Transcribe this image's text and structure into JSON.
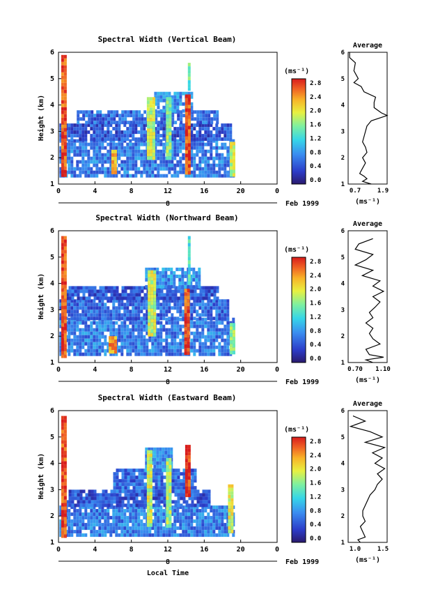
{
  "figure": {
    "date_label": "Feb 1999",
    "day_label": "8",
    "time_axis_label": "Local Time",
    "colorbar_unit": "(ms⁻¹)",
    "average_title": "Average",
    "average_unit": "(ms⁻¹)",
    "height_label": "Height (km)"
  },
  "chart_data": [
    {
      "type": "heatmap",
      "title": "Spectral Width (Vertical Beam)",
      "xlabel": "Local Time",
      "ylabel": "Height (km)",
      "xlim": [
        0,
        24
      ],
      "ylim": [
        1,
        6
      ],
      "x_ticks": [
        "0",
        "4",
        "8",
        "12",
        "16",
        "20",
        "0"
      ],
      "y_ticks": [
        "1",
        "2",
        "3",
        "4",
        "5",
        "6"
      ],
      "colorbar": {
        "unit": "(ms⁻¹)",
        "range": [
          0.0,
          2.8
        ],
        "ticks": [
          "0.0",
          "0.4",
          "0.8",
          "1.2",
          "1.6",
          "2.0",
          "2.4",
          "2.8"
        ]
      },
      "data_extent_hours": [
        0.0,
        19.3
      ],
      "cells": [
        {
          "t0": 0.1,
          "t1": 19.3,
          "h0": 1.35,
          "h1": 2.7,
          "v": 0.7
        },
        {
          "t0": 0.1,
          "t1": 19.0,
          "h0": 2.7,
          "h1": 3.3,
          "v": 0.5
        },
        {
          "t0": 2.0,
          "t1": 17.5,
          "h0": 3.3,
          "h1": 3.8,
          "v": 0.6
        },
        {
          "t0": 10.5,
          "t1": 14.5,
          "h0": 3.8,
          "h1": 4.5,
          "v": 0.8
        },
        {
          "t0": 0.3,
          "t1": 0.9,
          "h0": 1.3,
          "h1": 5.9,
          "v": 2.6
        },
        {
          "t0": 5.8,
          "t1": 6.3,
          "h0": 1.4,
          "h1": 2.3,
          "v": 2.2
        },
        {
          "t0": 9.7,
          "t1": 10.4,
          "h0": 2.0,
          "h1": 4.3,
          "v": 1.8
        },
        {
          "t0": 11.8,
          "t1": 12.4,
          "h0": 2.0,
          "h1": 4.3,
          "v": 1.6
        },
        {
          "t0": 13.9,
          "t1": 14.4,
          "h0": 1.4,
          "h1": 4.4,
          "v": 2.6
        },
        {
          "t0": 14.2,
          "t1": 14.5,
          "h0": 4.6,
          "h1": 5.6,
          "v": 1.4
        },
        {
          "t0": 18.8,
          "t1": 19.3,
          "h0": 1.4,
          "h1": 2.6,
          "v": 1.8
        }
      ],
      "average": {
        "xlim": [
          0.55,
          1.9
        ],
        "x_ticks": [
          "0.7",
          "1.9"
        ],
        "profile": [
          [
            1.0,
            1.35
          ],
          [
            1.1,
            1.05
          ],
          [
            1.2,
            1.2
          ],
          [
            1.3,
            1.1
          ],
          [
            1.4,
            0.95
          ],
          [
            1.6,
            1.05
          ],
          [
            1.8,
            1.15
          ],
          [
            2.0,
            1.05
          ],
          [
            2.2,
            1.2
          ],
          [
            2.4,
            1.15
          ],
          [
            2.6,
            1.05
          ],
          [
            2.8,
            1.1
          ],
          [
            3.0,
            1.15
          ],
          [
            3.2,
            1.2
          ],
          [
            3.4,
            1.35
          ],
          [
            3.6,
            1.9
          ],
          [
            3.7,
            1.7
          ],
          [
            3.9,
            1.45
          ],
          [
            4.1,
            1.45
          ],
          [
            4.3,
            1.5
          ],
          [
            4.5,
            1.1
          ],
          [
            4.7,
            1.0
          ],
          [
            4.85,
            0.75
          ],
          [
            5.0,
            0.9
          ],
          [
            5.3,
            0.75
          ],
          [
            5.6,
            0.8
          ],
          [
            5.8,
            0.6
          ],
          [
            6.0,
            0.6
          ]
        ]
      }
    },
    {
      "type": "heatmap",
      "title": "Spectral Width (Northward Beam)",
      "xlabel": "Local Time",
      "ylabel": "Height (km)",
      "xlim": [
        0,
        24
      ],
      "ylim": [
        1,
        6
      ],
      "x_ticks": [
        "0",
        "4",
        "8",
        "12",
        "16",
        "20",
        "0"
      ],
      "y_ticks": [
        "1",
        "2",
        "3",
        "4",
        "5",
        "6"
      ],
      "colorbar": {
        "unit": "(ms⁻¹)",
        "range": [
          0.0,
          2.8
        ],
        "ticks": [
          "0.0",
          "0.4",
          "0.8",
          "1.2",
          "1.6",
          "2.0",
          "2.4",
          "2.8"
        ]
      },
      "data_extent_hours": [
        0.0,
        19.3
      ],
      "cells": [
        {
          "t0": 0.1,
          "t1": 19.3,
          "h0": 1.3,
          "h1": 2.7,
          "v": 0.7
        },
        {
          "t0": 0.1,
          "t1": 18.5,
          "h0": 2.7,
          "h1": 3.4,
          "v": 0.6
        },
        {
          "t0": 0.5,
          "t1": 17.5,
          "h0": 3.4,
          "h1": 3.9,
          "v": 0.5
        },
        {
          "t0": 9.5,
          "t1": 15.5,
          "h0": 3.9,
          "h1": 4.6,
          "v": 0.8
        },
        {
          "t0": 0.3,
          "t1": 0.9,
          "h0": 1.3,
          "h1": 5.8,
          "v": 2.6
        },
        {
          "t0": 5.5,
          "t1": 6.2,
          "h0": 1.4,
          "h1": 2.0,
          "v": 2.3
        },
        {
          "t0": 9.8,
          "t1": 10.5,
          "h0": 2.0,
          "h1": 4.5,
          "v": 1.8
        },
        {
          "t0": 13.8,
          "t1": 14.3,
          "h0": 1.4,
          "h1": 3.8,
          "v": 2.6
        },
        {
          "t0": 14.2,
          "t1": 14.5,
          "h0": 4.0,
          "h1": 5.8,
          "v": 1.3
        },
        {
          "t0": 18.8,
          "t1": 19.3,
          "h0": 1.4,
          "h1": 2.5,
          "v": 1.6
        }
      ],
      "average": {
        "xlim": [
          0.6,
          1.15
        ],
        "x_ticks": [
          "0.70",
          "1.10"
        ],
        "profile": [
          [
            1.0,
            0.95
          ],
          [
            1.1,
            0.85
          ],
          [
            1.2,
            1.1
          ],
          [
            1.3,
            0.9
          ],
          [
            1.5,
            0.85
          ],
          [
            1.7,
            1.05
          ],
          [
            1.9,
            0.95
          ],
          [
            2.1,
            0.9
          ],
          [
            2.3,
            0.95
          ],
          [
            2.5,
            0.85
          ],
          [
            2.7,
            0.95
          ],
          [
            2.9,
            0.9
          ],
          [
            3.1,
            0.98
          ],
          [
            3.3,
            1.05
          ],
          [
            3.5,
            0.95
          ],
          [
            3.7,
            1.1
          ],
          [
            3.9,
            0.95
          ],
          [
            4.1,
            1.05
          ],
          [
            4.3,
            0.8
          ],
          [
            4.5,
            0.95
          ],
          [
            4.7,
            0.7
          ],
          [
            4.9,
            0.85
          ],
          [
            5.1,
            0.95
          ],
          [
            5.3,
            0.7
          ],
          [
            5.5,
            0.75
          ],
          [
            5.7,
            0.95
          ]
        ]
      }
    },
    {
      "type": "heatmap",
      "title": "Spectral Width (Eastward Beam)",
      "xlabel": "Local Time",
      "ylabel": "Height (km)",
      "xlim": [
        0,
        24
      ],
      "ylim": [
        1,
        6
      ],
      "x_ticks": [
        "0",
        "4",
        "8",
        "12",
        "16",
        "20",
        "0"
      ],
      "y_ticks": [
        "1",
        "2",
        "3",
        "4",
        "5",
        "6"
      ],
      "colorbar": {
        "unit": "(ms⁻¹)",
        "range": [
          0.0,
          2.8
        ],
        "ticks": [
          "0.0",
          "0.4",
          "0.8",
          "1.2",
          "1.6",
          "2.0",
          "2.4",
          "2.8"
        ]
      },
      "data_extent_hours": [
        0.0,
        19.3
      ],
      "cells": [
        {
          "t0": 0.1,
          "t1": 19.3,
          "h0": 1.3,
          "h1": 2.4,
          "v": 0.7
        },
        {
          "t0": 0.5,
          "t1": 16.5,
          "h0": 2.4,
          "h1": 3.0,
          "v": 0.5
        },
        {
          "t0": 6.0,
          "t1": 15.0,
          "h0": 3.0,
          "h1": 3.8,
          "v": 0.6
        },
        {
          "t0": 9.5,
          "t1": 12.5,
          "h0": 3.8,
          "h1": 4.6,
          "v": 0.8
        },
        {
          "t0": 0.3,
          "t1": 0.9,
          "h0": 1.3,
          "h1": 5.8,
          "v": 2.6
        },
        {
          "t0": 9.7,
          "t1": 10.3,
          "h0": 1.6,
          "h1": 4.5,
          "v": 1.8
        },
        {
          "t0": 11.8,
          "t1": 12.4,
          "h0": 1.6,
          "h1": 4.2,
          "v": 1.7
        },
        {
          "t0": 13.9,
          "t1": 14.4,
          "h0": 2.8,
          "h1": 4.7,
          "v": 2.7
        },
        {
          "t0": 18.6,
          "t1": 19.2,
          "h0": 1.4,
          "h1": 3.2,
          "v": 1.9
        }
      ],
      "average": {
        "xlim": [
          0.75,
          1.55
        ],
        "x_ticks": [
          "1.0",
          "1.5"
        ],
        "profile": [
          [
            1.0,
            1.0
          ],
          [
            1.1,
            0.95
          ],
          [
            1.2,
            1.1
          ],
          [
            1.4,
            1.05
          ],
          [
            1.6,
            1.0
          ],
          [
            1.8,
            1.1
          ],
          [
            2.0,
            1.05
          ],
          [
            2.2,
            1.05
          ],
          [
            2.4,
            1.1
          ],
          [
            2.6,
            1.15
          ],
          [
            2.8,
            1.2
          ],
          [
            3.0,
            1.3
          ],
          [
            3.2,
            1.35
          ],
          [
            3.4,
            1.45
          ],
          [
            3.6,
            1.35
          ],
          [
            3.8,
            1.5
          ],
          [
            4.0,
            1.3
          ],
          [
            4.2,
            1.45
          ],
          [
            4.4,
            1.25
          ],
          [
            4.6,
            1.5
          ],
          [
            4.8,
            1.1
          ],
          [
            5.0,
            1.45
          ],
          [
            5.2,
            1.2
          ],
          [
            5.4,
            0.8
          ],
          [
            5.6,
            1.1
          ],
          [
            5.8,
            0.85
          ]
        ]
      }
    }
  ]
}
